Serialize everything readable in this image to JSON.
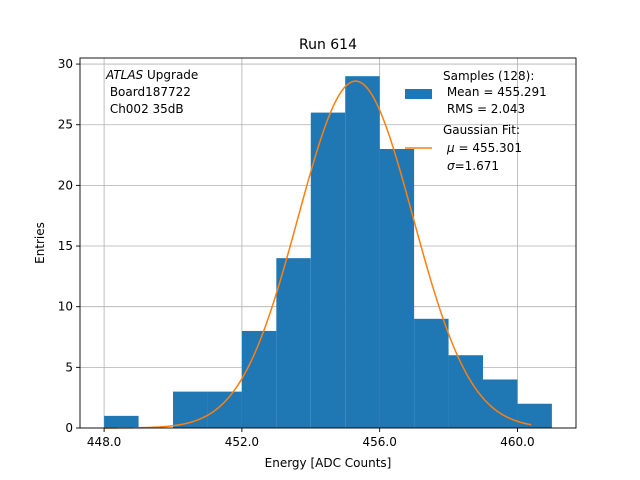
{
  "chart_data": {
    "type": "bar",
    "title": "Run 614",
    "xlabel": "Energy [ADC Counts]",
    "ylabel": "Entries",
    "xlim": [
      447.3,
      461.7
    ],
    "ylim": [
      0,
      30.5
    ],
    "xticks": [
      448.0,
      452.0,
      456.0,
      460.0
    ],
    "xtick_labels": [
      "448.0",
      "452.0",
      "456.0",
      "460.0"
    ],
    "yticks": [
      0,
      5,
      10,
      15,
      20,
      25,
      30
    ],
    "ytick_labels": [
      "0",
      "5",
      "10",
      "15",
      "20",
      "25",
      "30"
    ],
    "grid": true,
    "bin_width": 1,
    "bins": [
      {
        "left": 448,
        "value": 1
      },
      {
        "left": 449,
        "value": 0
      },
      {
        "left": 450,
        "value": 3
      },
      {
        "left": 451,
        "value": 3
      },
      {
        "left": 452,
        "value": 8
      },
      {
        "left": 453,
        "value": 14
      },
      {
        "left": 454,
        "value": 26
      },
      {
        "left": 455,
        "value": 29
      },
      {
        "left": 456,
        "value": 23
      },
      {
        "left": 457,
        "value": 9
      },
      {
        "left": 458,
        "value": 6
      },
      {
        "left": 459,
        "value": 4
      },
      {
        "left": 460,
        "value": 2
      }
    ],
    "fit": {
      "type": "gaussian",
      "mu": 455.301,
      "sigma": 1.671,
      "amplitude": 28.6,
      "x_range": [
        448.0,
        460.4
      ]
    },
    "colors": {
      "hist": "#1f77b4",
      "fit": "#ff7f0e",
      "grid": "#b0b0b0"
    },
    "annotation": {
      "italic": "ATLAS",
      "rest": " Upgrade",
      "line2": " Board187722",
      "line3": " Ch002 35dB"
    },
    "legend": {
      "position": "top-right",
      "hist_lines": [
        "Samples (128):",
        " Mean = 455.291",
        " RMS = 2.043"
      ],
      "fit_line1": "Gaussian Fit:",
      "fit_mu_symbol": "μ",
      "fit_mu_value": " = 455.301",
      "fit_sigma_symbol": "σ",
      "fit_sigma_value": "=1.671"
    }
  }
}
